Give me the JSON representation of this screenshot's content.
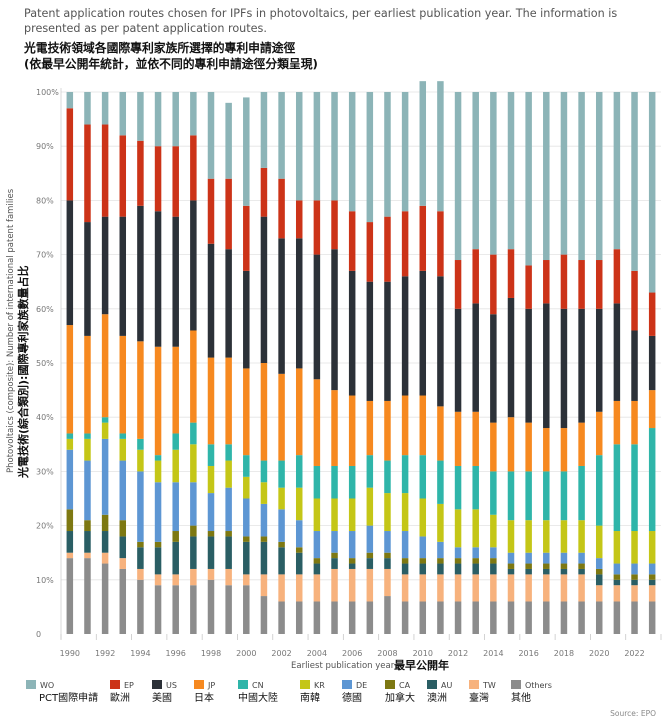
{
  "chart_data": {
    "type": "bar",
    "stacked": true,
    "title": "Patent application routes chosen for IPFs in photovoltaics, per earliest publication year. The information is presented as per patent application routes.",
    "title_zh_line1": "光電技術領域各國際專利家族所選擇的專利申請途徑",
    "title_zh_line2": "(依最早公開年統計，並依不同的專利申請途徑分類呈現)",
    "xlabel": "Earliest publication year",
    "xlabel_zh": "最早公開年",
    "ylabel": "Photovoltaics (composite): Number of international patent families",
    "ylabel_zh": "光電技術(綜合類別):國際專利家族數量占比",
    "ylim": [
      0,
      100
    ],
    "yticks": [
      "0",
      "10%",
      "20%",
      "30%",
      "40%",
      "50%",
      "60%",
      "70%",
      "80%",
      "90%",
      "100%"
    ],
    "xtick_labels": [
      "1990",
      "1992",
      "1994",
      "1996",
      "1998",
      "2000",
      "2002",
      "2004",
      "2006",
      "2008",
      "2010",
      "2012",
      "2014",
      "2016",
      "2018",
      "2020",
      "2022"
    ],
    "categories": [
      "1990",
      "1991",
      "1992",
      "1993",
      "1994",
      "1995",
      "1996",
      "1997",
      "1998",
      "1999",
      "2000",
      "2001",
      "2002",
      "2003",
      "2004",
      "2005",
      "2006",
      "2007",
      "2008",
      "2009",
      "2010",
      "2011",
      "2012",
      "2013",
      "2014",
      "2015",
      "2016",
      "2017",
      "2018",
      "2019",
      "2020",
      "2021",
      "2022",
      "2023"
    ],
    "series": [
      {
        "name": "Others",
        "name_zh": "其他",
        "color": "#8c8c8c",
        "values": [
          14,
          14,
          13,
          12,
          10,
          9,
          9,
          9,
          10,
          9,
          9,
          7,
          6,
          6,
          6,
          6,
          6,
          6,
          7,
          6,
          6,
          6,
          6,
          6,
          6,
          6,
          6,
          6,
          6,
          6,
          6,
          6,
          6,
          6
        ]
      },
      {
        "name": "TW",
        "name_zh": "臺灣",
        "color": "#f7b27d",
        "values": [
          1,
          1,
          2,
          2,
          2,
          2,
          2,
          3,
          2,
          3,
          2,
          4,
          5,
          5,
          5,
          6,
          6,
          6,
          5,
          5,
          5,
          5,
          5,
          5,
          5,
          5,
          5,
          5,
          5,
          5,
          3,
          3,
          3,
          3
        ]
      },
      {
        "name": "AU",
        "name_zh": "澳洲",
        "color": "#2a5e64",
        "values": [
          4,
          4,
          4,
          4,
          4,
          5,
          6,
          6,
          6,
          6,
          6,
          6,
          5,
          4,
          2,
          2,
          1,
          2,
          2,
          2,
          2,
          2,
          2,
          2,
          2,
          1,
          1,
          1,
          1,
          1,
          2,
          1,
          1,
          1
        ]
      },
      {
        "name": "CA",
        "name_zh": "加拿大",
        "color": "#7d7812",
        "values": [
          4,
          2,
          3,
          3,
          1,
          1,
          2,
          2,
          1,
          1,
          1,
          1,
          1,
          1,
          1,
          1,
          1,
          1,
          1,
          1,
          1,
          1,
          1,
          1,
          1,
          1,
          1,
          1,
          1,
          1,
          1,
          1,
          1,
          1
        ]
      },
      {
        "name": "DE",
        "name_zh": "德國",
        "color": "#5d96d3",
        "values": [
          11,
          11,
          14,
          11,
          13,
          11,
          9,
          8,
          7,
          8,
          7,
          6,
          6,
          5,
          5,
          4,
          5,
          5,
          4,
          5,
          4,
          3,
          2,
          2,
          2,
          2,
          2,
          2,
          2,
          2,
          2,
          2,
          2,
          2
        ]
      },
      {
        "name": "KR",
        "name_zh": "南韓",
        "color": "#c4c617",
        "values": [
          2,
          4,
          3,
          4,
          4,
          4,
          6,
          7,
          5,
          5,
          4,
          4,
          4,
          6,
          6,
          6,
          6,
          7,
          7,
          7,
          7,
          7,
          7,
          7,
          6,
          6,
          6,
          6,
          6,
          6,
          6,
          6,
          6,
          6
        ]
      },
      {
        "name": "CN",
        "name_zh": "中國大陸",
        "color": "#2fb5a9",
        "values": [
          1,
          1,
          1,
          1,
          2,
          1,
          3,
          4,
          4,
          3,
          4,
          4,
          5,
          6,
          6,
          6,
          6,
          6,
          6,
          7,
          8,
          8,
          8,
          8,
          8,
          9,
          9,
          9,
          9,
          10,
          13,
          16,
          16,
          19
        ]
      },
      {
        "name": "JP",
        "name_zh": "日本",
        "color": "#f68920",
        "values": [
          20,
          18,
          19,
          18,
          18,
          20,
          16,
          17,
          16,
          16,
          16,
          18,
          16,
          16,
          16,
          14,
          13,
          10,
          11,
          11,
          11,
          10,
          10,
          10,
          9,
          10,
          9,
          8,
          8,
          8,
          8,
          8,
          8,
          7
        ]
      },
      {
        "name": "US",
        "name_zh": "美國",
        "color": "#2c3138",
        "values": [
          23,
          21,
          18,
          22,
          25,
          25,
          24,
          24,
          21,
          20,
          18,
          27,
          25,
          24,
          23,
          26,
          23,
          22,
          22,
          22,
          23,
          24,
          19,
          20,
          20,
          22,
          21,
          23,
          22,
          21,
          19,
          18,
          13,
          10
        ]
      },
      {
        "name": "EP",
        "name_zh": "歐洲",
        "color": "#cc3318",
        "values": [
          17,
          18,
          17,
          15,
          12,
          12,
          13,
          12,
          12,
          13,
          12,
          9,
          11,
          7,
          10,
          9,
          11,
          11,
          12,
          12,
          12,
          12,
          9,
          10,
          11,
          9,
          8,
          8,
          10,
          9,
          9,
          10,
          11,
          8
        ]
      },
      {
        "name": "WO",
        "name_zh": "PCT國際申請",
        "color": "#8cb4b7",
        "values": [
          3,
          6,
          6,
          8,
          9,
          10,
          10,
          8,
          16,
          14,
          20,
          14,
          16,
          20,
          20,
          20,
          22,
          24,
          23,
          22,
          23,
          24,
          31,
          29,
          30,
          29,
          32,
          31,
          30,
          31,
          31,
          29,
          33,
          37
        ]
      }
    ]
  },
  "legend_order": [
    "WO",
    "EP",
    "US",
    "JP",
    "CN",
    "KR",
    "DE",
    "CA",
    "AU",
    "TW",
    "Others"
  ],
  "source": "Source: EPO"
}
